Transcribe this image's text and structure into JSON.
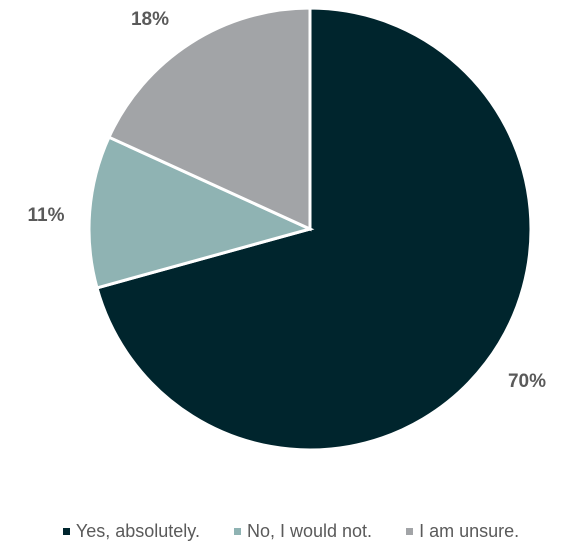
{
  "chart_data": {
    "type": "pie",
    "categories": [
      "Yes, absolutely.",
      "No, I would not.",
      "I am unsure."
    ],
    "values": [
      70,
      11,
      18
    ],
    "data_labels": [
      "70%",
      "11%",
      "18%"
    ],
    "colors": [
      "#00252d",
      "#8fb3b3",
      "#a2a4a7"
    ],
    "legend_position": "bottom"
  },
  "legend": {
    "items": [
      {
        "label": "Yes, absolutely.",
        "color": "#00252d"
      },
      {
        "label": "No, I would not.",
        "color": "#8fb3b3"
      },
      {
        "label": "I am unsure.",
        "color": "#a2a4a7"
      }
    ]
  }
}
